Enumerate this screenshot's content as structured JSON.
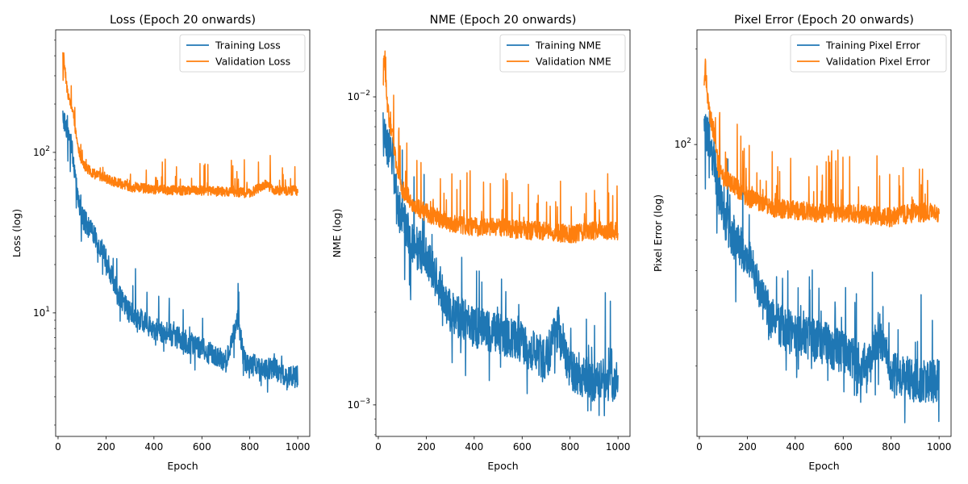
{
  "chart_data": [
    {
      "type": "line",
      "title": "Loss (Epoch 20 onwards)",
      "xlabel": "Epoch",
      "ylabel": "Loss (log)",
      "yscale": "log",
      "xlim": [
        -10,
        1050
      ],
      "ylim": [
        1.7,
        580
      ],
      "xticks": [
        0,
        200,
        400,
        600,
        800,
        1000
      ],
      "yticks_major": [
        {
          "value": 10,
          "label": "10",
          "sup": "1"
        },
        {
          "value": 100,
          "label": "10",
          "sup": "2"
        }
      ],
      "grid": false,
      "legend": "upper right",
      "series": [
        {
          "name": "Training Loss",
          "color": "#1f77b4",
          "x": [
            20,
            30,
            45,
            60,
            80,
            100,
            150,
            200,
            250,
            300,
            400,
            500,
            600,
            700,
            750,
            780,
            850,
            900,
            950,
            1000
          ],
          "values": [
            170,
            150,
            130,
            100,
            55,
            40,
            30,
            22,
            13,
            10,
            8,
            7,
            6,
            5,
            9,
            5,
            4.5,
            4.5,
            4,
            4
          ]
        },
        {
          "name": "Validation Loss",
          "color": "#ff7f0e",
          "x": [
            20,
            25,
            30,
            40,
            60,
            80,
            100,
            150,
            200,
            300,
            400,
            500,
            600,
            700,
            800,
            865,
            900,
            1000
          ],
          "values": [
            250,
            350,
            300,
            220,
            180,
            110,
            80,
            70,
            65,
            58,
            56,
            55,
            55,
            54,
            53,
            60,
            55,
            55
          ]
        }
      ]
    },
    {
      "type": "line",
      "title": "NME (Epoch 20 onwards)",
      "xlabel": "Epoch",
      "ylabel": "NME (log)",
      "yscale": "log",
      "xlim": [
        -10,
        1050
      ],
      "ylim": [
        0.00079,
        0.0165
      ],
      "xticks": [
        0,
        200,
        400,
        600,
        800,
        1000
      ],
      "yticks_major": [
        {
          "value": 0.001,
          "label": "10",
          "sup": "−3"
        },
        {
          "value": 0.01,
          "label": "10",
          "sup": "−2"
        }
      ],
      "grid": false,
      "legend": "upper right",
      "series": [
        {
          "name": "Training NME",
          "color": "#1f77b4",
          "x": [
            20,
            30,
            45,
            60,
            80,
            100,
            150,
            200,
            250,
            300,
            400,
            500,
            600,
            700,
            750,
            800,
            900,
            1000
          ],
          "values": [
            0.0075,
            0.0072,
            0.0068,
            0.006,
            0.0045,
            0.004,
            0.0033,
            0.003,
            0.0025,
            0.002,
            0.0018,
            0.0017,
            0.0016,
            0.0014,
            0.0018,
            0.0013,
            0.0012,
            0.0012
          ]
        },
        {
          "name": "Validation NME",
          "color": "#ff7f0e",
          "x": [
            20,
            25,
            30,
            40,
            60,
            80,
            100,
            150,
            200,
            300,
            400,
            500,
            600,
            700,
            800,
            900,
            1000
          ],
          "values": [
            0.01,
            0.013,
            0.011,
            0.0085,
            0.007,
            0.0055,
            0.0048,
            0.0042,
            0.004,
            0.0037,
            0.0036,
            0.0036,
            0.0035,
            0.0035,
            0.0034,
            0.0035,
            0.0035
          ]
        }
      ]
    },
    {
      "type": "line",
      "title": "Pixel Error (Epoch 20 onwards)",
      "xlabel": "Epoch",
      "ylabel": "Pixel Error (log)",
      "yscale": "log",
      "xlim": [
        -10,
        1050
      ],
      "ylim": [
        12,
        230
      ],
      "xticks": [
        0,
        200,
        400,
        600,
        800,
        1000
      ],
      "yticks_major": [
        {
          "value": 100,
          "label": "10",
          "sup": "2"
        }
      ],
      "grid": false,
      "legend": "upper right",
      "series": [
        {
          "name": "Training Pixel Error",
          "color": "#1f77b4",
          "x": [
            20,
            30,
            45,
            60,
            80,
            100,
            150,
            200,
            250,
            300,
            400,
            500,
            600,
            700,
            750,
            800,
            900,
            1000
          ],
          "values": [
            110,
            105,
            100,
            90,
            70,
            60,
            50,
            45,
            35,
            28,
            25,
            24,
            22,
            20,
            25,
            19,
            18,
            18
          ]
        },
        {
          "name": "Validation Pixel Error",
          "color": "#ff7f0e",
          "x": [
            20,
            25,
            30,
            40,
            60,
            80,
            100,
            150,
            200,
            300,
            400,
            500,
            600,
            700,
            800,
            900,
            1000
          ],
          "values": [
            140,
            170,
            150,
            120,
            105,
            80,
            75,
            70,
            65,
            60,
            59,
            58,
            58,
            57,
            56,
            58,
            58
          ]
        }
      ]
    }
  ]
}
